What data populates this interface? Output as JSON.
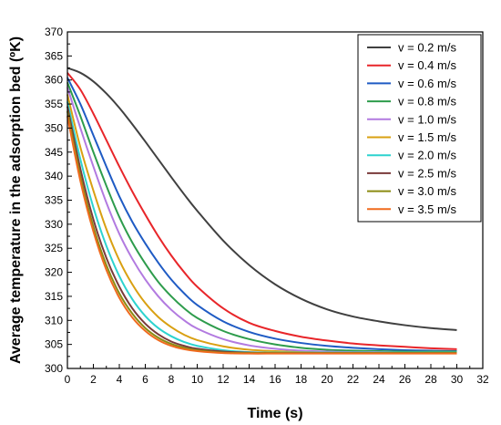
{
  "chart_data": {
    "type": "line",
    "xlabel": "Time (s)",
    "ylabel": "Average temperature in the adsorption bed (ºK)",
    "xlim": [
      0,
      32
    ],
    "ylim": [
      300,
      370
    ],
    "xticks": [
      0,
      2,
      4,
      6,
      8,
      10,
      12,
      14,
      16,
      18,
      20,
      22,
      24,
      26,
      28,
      30,
      32
    ],
    "yticks": [
      300,
      305,
      310,
      315,
      320,
      325,
      330,
      335,
      340,
      345,
      350,
      355,
      360,
      365,
      370
    ],
    "grid": false,
    "legend_position": "top-right",
    "x": [
      0,
      1,
      2,
      3,
      4,
      5,
      6,
      7,
      8,
      9,
      10,
      12,
      14,
      16,
      18,
      20,
      22,
      24,
      26,
      28,
      30
    ],
    "series": [
      {
        "name": "v = 0.2 m/s",
        "color": "#404040",
        "values": [
          362.5,
          361.5,
          359.7,
          357.2,
          354.2,
          350.8,
          347.2,
          343.5,
          339.8,
          336.2,
          332.8,
          326.6,
          321.5,
          317.5,
          314.5,
          312.3,
          310.8,
          309.8,
          309.0,
          308.4,
          308.0
        ]
      },
      {
        "name": "v = 0.4 m/s",
        "color": "#e8262a",
        "values": [
          361.5,
          358.0,
          353.0,
          347.5,
          342.0,
          336.8,
          332.0,
          327.5,
          323.5,
          320.0,
          317.0,
          312.5,
          309.5,
          307.8,
          306.6,
          305.8,
          305.2,
          304.8,
          304.5,
          304.2,
          304.0
        ]
      },
      {
        "name": "v = 0.6 m/s",
        "color": "#1f5bc4",
        "values": [
          360.5,
          355.0,
          348.5,
          342.0,
          335.8,
          330.5,
          326.0,
          322.0,
          318.5,
          315.6,
          313.2,
          309.8,
          307.6,
          306.2,
          305.3,
          304.7,
          304.3,
          304.0,
          303.8,
          303.7,
          303.6
        ]
      },
      {
        "name": "v = 0.8 m/s",
        "color": "#2e9c4c",
        "values": [
          359.5,
          352.5,
          345.0,
          338.0,
          331.5,
          326.2,
          321.8,
          318.0,
          315.0,
          312.5,
          310.5,
          307.8,
          306.1,
          305.0,
          304.3,
          303.9,
          303.7,
          303.6,
          303.5,
          303.5,
          303.5
        ]
      },
      {
        "name": "v = 1.0 m/s",
        "color": "#b27ae0",
        "values": [
          358.5,
          350.0,
          342.0,
          334.5,
          328.0,
          322.8,
          318.5,
          315.0,
          312.2,
          310.0,
          308.3,
          306.1,
          304.8,
          304.1,
          303.7,
          303.5,
          303.4,
          303.4,
          303.3,
          303.3,
          303.3
        ]
      },
      {
        "name": "v = 1.5 m/s",
        "color": "#d9a012",
        "values": [
          357.0,
          346.0,
          337.0,
          329.0,
          322.5,
          317.5,
          313.6,
          310.7,
          308.6,
          307.0,
          305.9,
          304.6,
          303.9,
          303.6,
          303.4,
          303.3,
          303.3,
          303.3,
          303.3,
          303.3,
          303.3
        ]
      },
      {
        "name": "v = 2.0 m/s",
        "color": "#2dd3cf",
        "values": [
          355.5,
          343.5,
          333.5,
          325.5,
          319.2,
          314.4,
          310.9,
          308.4,
          306.7,
          305.5,
          304.7,
          303.8,
          303.4,
          303.3,
          303.3,
          303.3,
          303.3,
          303.3,
          303.3,
          303.3,
          303.3
        ]
      },
      {
        "name": "v = 2.5 m/s",
        "color": "#7a3a3a",
        "values": [
          354.5,
          341.5,
          331.0,
          323.0,
          317.0,
          312.5,
          309.3,
          307.1,
          305.6,
          304.7,
          304.1,
          303.5,
          303.3,
          303.2,
          303.2,
          303.2,
          303.2,
          303.2,
          303.2,
          303.2,
          303.2
        ]
      },
      {
        "name": "v = 3.0 m/s",
        "color": "#8b8b12",
        "values": [
          353.5,
          340.0,
          329.5,
          321.5,
          315.6,
          311.4,
          308.4,
          306.4,
          305.1,
          304.3,
          303.8,
          303.3,
          303.2,
          303.2,
          303.2,
          303.2,
          303.2,
          303.2,
          303.2,
          303.2,
          303.2
        ]
      },
      {
        "name": "v = 3.5 m/s",
        "color": "#f06a1e",
        "values": [
          352.5,
          339.0,
          328.5,
          320.5,
          314.7,
          310.6,
          307.8,
          305.9,
          304.7,
          304.0,
          303.6,
          303.2,
          303.1,
          303.1,
          303.1,
          303.1,
          303.1,
          303.1,
          303.1,
          303.1,
          303.1
        ]
      }
    ]
  }
}
